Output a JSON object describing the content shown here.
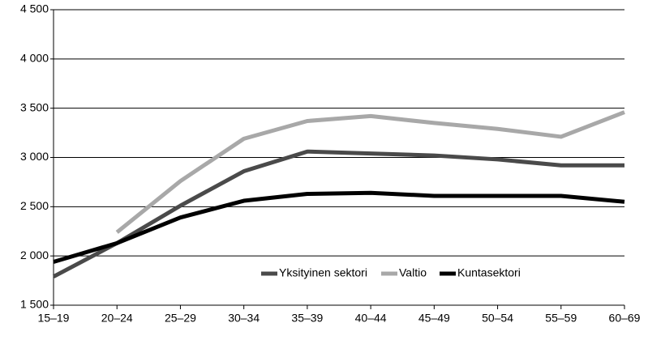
{
  "chart_data": {
    "type": "line",
    "categories": [
      "15–19",
      "20–24",
      "25–29",
      "30–34",
      "35–39",
      "40–44",
      "45–49",
      "50–54",
      "55–59",
      "60–69"
    ],
    "series": [
      {
        "name": "Yksityinen sektori",
        "color": "#4a4a4a",
        "values": [
          1790,
          2130,
          2510,
          2860,
          3060,
          3040,
          3020,
          2980,
          2920,
          2920
        ]
      },
      {
        "name": "Valtio",
        "color": "#a8a8a8",
        "values": [
          null,
          2240,
          2760,
          3190,
          3370,
          3420,
          3350,
          3290,
          3210,
          3460
        ]
      },
      {
        "name": "Kuntasektori",
        "color": "#000000",
        "values": [
          1940,
          2130,
          2390,
          2560,
          2630,
          2640,
          2610,
          2610,
          2610,
          2550
        ]
      }
    ],
    "ylim": [
      1500,
      4500
    ],
    "yticks": [
      {
        "value": 1500,
        "label": "1 500"
      },
      {
        "value": 2000,
        "label": "2 000"
      },
      {
        "value": 2500,
        "label": "2 500"
      },
      {
        "value": 3000,
        "label": "3 000"
      },
      {
        "value": 3500,
        "label": "3 500"
      },
      {
        "value": 4000,
        "label": "4 000"
      },
      {
        "value": 4500,
        "label": "4 500"
      }
    ],
    "grid": true
  }
}
